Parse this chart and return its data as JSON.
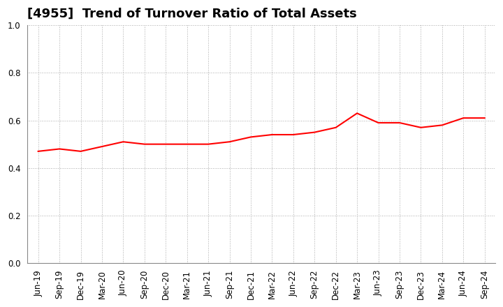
{
  "title": "[4955]  Trend of Turnover Ratio of Total Assets",
  "labels": [
    "Jun-19",
    "Sep-19",
    "Dec-19",
    "Mar-20",
    "Jun-20",
    "Sep-20",
    "Dec-20",
    "Mar-21",
    "Jun-21",
    "Sep-21",
    "Dec-21",
    "Mar-22",
    "Jun-22",
    "Sep-22",
    "Dec-22",
    "Mar-23",
    "Jun-23",
    "Sep-23",
    "Dec-23",
    "Mar-24",
    "Jun-24",
    "Sep-24"
  ],
  "values": [
    0.47,
    0.48,
    0.47,
    0.49,
    0.51,
    0.5,
    0.5,
    0.5,
    0.5,
    0.51,
    0.53,
    0.54,
    0.54,
    0.55,
    0.57,
    0.63,
    0.59,
    0.59,
    0.57,
    0.58,
    0.61,
    0.61
  ],
  "line_color": "#ff0000",
  "line_width": 1.5,
  "ylim": [
    0.0,
    1.0
  ],
  "yticks": [
    0.0,
    0.2,
    0.4,
    0.6,
    0.8,
    1.0
  ],
  "background_color": "#ffffff",
  "grid_color": "#aaaaaa",
  "title_fontsize": 13,
  "tick_fontsize": 8.5
}
